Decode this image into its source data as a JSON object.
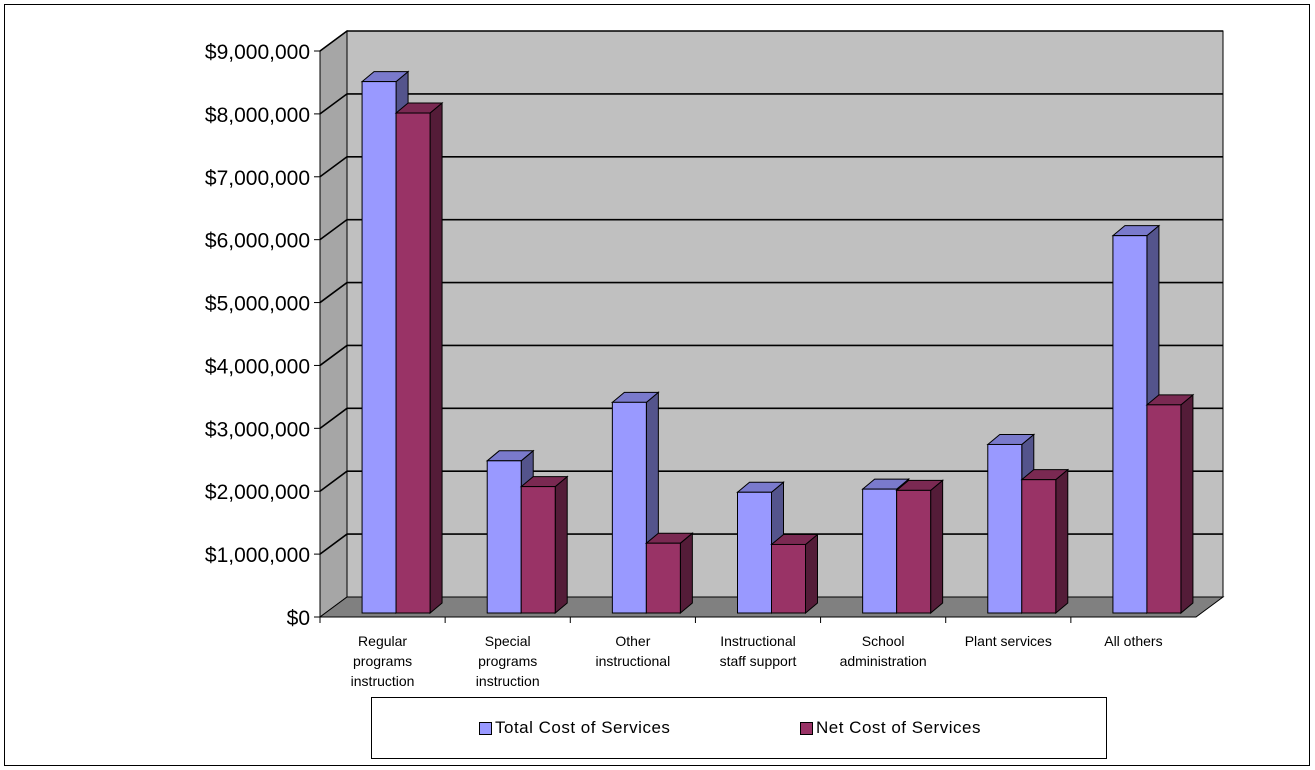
{
  "chart_data": {
    "type": "bar",
    "categories": [
      [
        "Regular",
        "programs",
        "instruction"
      ],
      [
        "Special",
        "programs",
        "instruction"
      ],
      [
        "Other",
        "instructional"
      ],
      [
        "Instructional",
        "staff support"
      ],
      [
        "School",
        "administration"
      ],
      [
        "Plant services"
      ],
      [
        "All others"
      ]
    ],
    "series": [
      {
        "name": "Total Cost of Services",
        "color": "#9999ff",
        "values": [
          8450000,
          2420000,
          3350000,
          1920000,
          1970000,
          2680000,
          6000000
        ]
      },
      {
        "name": "Net Cost of Services",
        "color": "#993366",
        "values": [
          7950000,
          2010000,
          1110000,
          1090000,
          1950000,
          2120000,
          3310000
        ]
      }
    ],
    "yticks": [
      "$0",
      "$1,000,000",
      "$2,000,000",
      "$3,000,000",
      "$4,000,000",
      "$5,000,000",
      "$6,000,000",
      "$7,000,000",
      "$8,000,000",
      "$9,000,000"
    ],
    "ylim": [
      0,
      9000000
    ],
    "grid": true,
    "legend_position": "bottom",
    "title": "",
    "xlabel": "",
    "ylabel": ""
  }
}
